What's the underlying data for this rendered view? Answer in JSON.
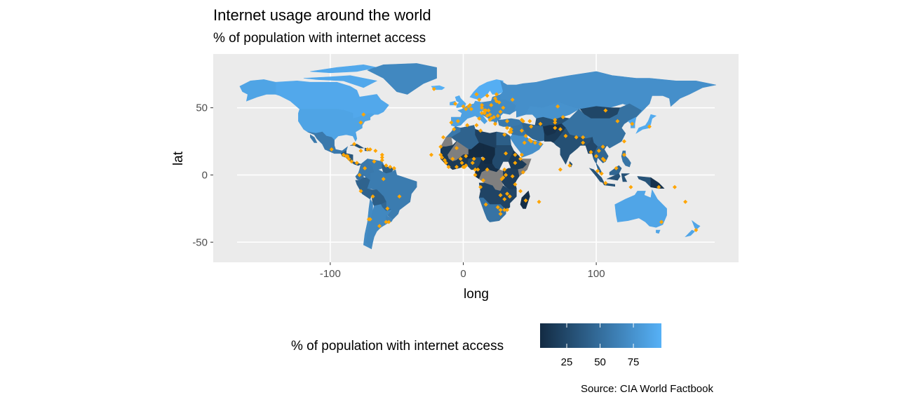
{
  "title": "Internet usage around the world",
  "subtitle": "% of population with internet access",
  "caption": "Source: CIA World Factbook",
  "colors": {
    "panel_bg": "#EBEBEB",
    "grid": "#FFFFFF",
    "low": "#132B43",
    "high": "#56B1F7",
    "missing": "#7F7F7F",
    "capital_point": "#FFA500"
  },
  "chart_data": {
    "type": "choropleth",
    "xlabel": "long",
    "ylabel": "lat",
    "xlim": [
      -188,
      207
    ],
    "ylim": [
      -65,
      90
    ],
    "x_ticks": [
      -100,
      0,
      100
    ],
    "y_ticks": [
      -50,
      0,
      50
    ],
    "grid": true,
    "legend": {
      "title": "% of population with internet access",
      "position": "bottom",
      "range": [
        5,
        96
      ],
      "breaks": [
        25,
        50,
        75
      ]
    },
    "regions": [
      {
        "name": "Canada",
        "value": 90
      },
      {
        "name": "Greenland",
        "value": 68
      },
      {
        "name": "United States",
        "value": 87
      },
      {
        "name": "Mexico",
        "value": 58
      },
      {
        "name": "Central America",
        "value": 35
      },
      {
        "name": "Cuba",
        "value": 30
      },
      {
        "name": "Colombia",
        "value": 58
      },
      {
        "name": "Venezuela",
        "value": 60
      },
      {
        "name": "Guianas",
        "value": 40
      },
      {
        "name": "Ecuador",
        "value": 52
      },
      {
        "name": "Peru",
        "value": 43
      },
      {
        "name": "Brazil",
        "value": 60
      },
      {
        "name": "Bolivia",
        "value": 40
      },
      {
        "name": "Paraguay",
        "value": 46
      },
      {
        "name": "Chile",
        "value": 70
      },
      {
        "name": "Argentina",
        "value": 68
      },
      {
        "name": "Uruguay",
        "value": 65
      },
      {
        "name": "Iceland",
        "value": 95
      },
      {
        "name": "Scandinavia",
        "value": 94
      },
      {
        "name": "United Kingdom",
        "value": 92
      },
      {
        "name": "Western Europe",
        "value": 85
      },
      {
        "name": "Eastern Europe",
        "value": 70
      },
      {
        "name": "Russia",
        "value": 73
      },
      {
        "name": "Kazakhstan",
        "value": 75
      },
      {
        "name": "Central Asia",
        "value": 30
      },
      {
        "name": "Mongolia",
        "value": 23
      },
      {
        "name": "China",
        "value": 53
      },
      {
        "name": "Japan",
        "value": 92
      },
      {
        "name": "Korea",
        "value": 90
      },
      {
        "name": "Turkey",
        "value": 58
      },
      {
        "name": "Middle East",
        "value": 55
      },
      {
        "name": "Saudi Arabia",
        "value": 73
      },
      {
        "name": "Iran",
        "value": 45
      },
      {
        "name": "Afghanistan",
        "value": 10
      },
      {
        "name": "Pakistan",
        "value": 15
      },
      {
        "name": "India",
        "value": 30
      },
      {
        "name": "Myanmar",
        "value": 25
      },
      {
        "name": "Southeast Asia",
        "value": 45
      },
      {
        "name": "Indonesia",
        "value": 32
      },
      {
        "name": "Papua New Guinea",
        "value": 10
      },
      {
        "name": "Philippines",
        "value": 55
      },
      {
        "name": "Australia",
        "value": 88
      },
      {
        "name": "New Zealand",
        "value": 88
      },
      {
        "name": "Morocco",
        "value": 58
      },
      {
        "name": "Algeria",
        "value": 43
      },
      {
        "name": "Libya",
        "value": 20
      },
      {
        "name": "Egypt",
        "value": 40
      },
      {
        "name": "Western Sahara",
        "value": null
      },
      {
        "name": "Mali",
        "value": null
      },
      {
        "name": "Niger",
        "value": 4
      },
      {
        "name": "Chad",
        "value": 5
      },
      {
        "name": "Sudan",
        "value": 26
      },
      {
        "name": "Ethiopia",
        "value": 15
      },
      {
        "name": "Somalia",
        "value": null
      },
      {
        "name": "West Africa",
        "value": 15
      },
      {
        "name": "Nigeria",
        "value": 25
      },
      {
        "name": "Central Africa",
        "value": 8
      },
      {
        "name": "DR Congo",
        "value": null
      },
      {
        "name": "East Africa",
        "value": 18
      },
      {
        "name": "Southern Africa",
        "value": 22
      },
      {
        "name": "South Africa",
        "value": 54
      },
      {
        "name": "Madagascar",
        "value": 7
      }
    ],
    "points": [
      [
        -77,
        39
      ],
      [
        -75,
        45
      ],
      [
        -99,
        19
      ],
      [
        -90,
        15
      ],
      [
        -88,
        14
      ],
      [
        -87,
        14
      ],
      [
        -86,
        12
      ],
      [
        -84,
        10
      ],
      [
        -80,
        9
      ],
      [
        -82,
        23
      ],
      [
        -77,
        18
      ],
      [
        -72,
        19
      ],
      [
        -70,
        19
      ],
      [
        -66,
        18
      ],
      [
        -61,
        15
      ],
      [
        -61,
        13
      ],
      [
        -61,
        11
      ],
      [
        -74,
        5
      ],
      [
        -67,
        10
      ],
      [
        -58,
        7
      ],
      [
        -55,
        6
      ],
      [
        -52,
        5
      ],
      [
        -78,
        0
      ],
      [
        -77,
        -12
      ],
      [
        -68,
        -16
      ],
      [
        -57,
        -25
      ],
      [
        -58,
        -35
      ],
      [
        -56,
        -35
      ],
      [
        -70,
        -33
      ],
      [
        -48,
        -16
      ],
      [
        -60,
        -3
      ],
      [
        -71,
        -33
      ],
      [
        -63,
        -38
      ],
      [
        -22,
        64
      ],
      [
        -6,
        53
      ],
      [
        0,
        51
      ],
      [
        2,
        49
      ],
      [
        4,
        51
      ],
      [
        6,
        49
      ],
      [
        5,
        52
      ],
      [
        12,
        56
      ],
      [
        10,
        60
      ],
      [
        18,
        59
      ],
      [
        25,
        60
      ],
      [
        24,
        57
      ],
      [
        25,
        55
      ],
      [
        21,
        52
      ],
      [
        14,
        52
      ],
      [
        14,
        50
      ],
      [
        16,
        48
      ],
      [
        19,
        48
      ],
      [
        17,
        48
      ],
      [
        14,
        46
      ],
      [
        16,
        46
      ],
      [
        18,
        44
      ],
      [
        20,
        45
      ],
      [
        21,
        42
      ],
      [
        20,
        41
      ],
      [
        23,
        43
      ],
      [
        26,
        44
      ],
      [
        28,
        47
      ],
      [
        30,
        50
      ],
      [
        27,
        54
      ],
      [
        37,
        56
      ],
      [
        12,
        42
      ],
      [
        -4,
        40
      ],
      [
        -9,
        39
      ],
      [
        24,
        38
      ],
      [
        33,
        35
      ],
      [
        33,
        40
      ],
      [
        36,
        34
      ],
      [
        35,
        32
      ],
      [
        36,
        32
      ],
      [
        44,
        41
      ],
      [
        45,
        40
      ],
      [
        50,
        40
      ],
      [
        44,
        33
      ],
      [
        47,
        29
      ],
      [
        50,
        26
      ],
      [
        51,
        25
      ],
      [
        54,
        24
      ],
      [
        58,
        23
      ],
      [
        44,
        15
      ],
      [
        46,
        24
      ],
      [
        51,
        36
      ],
      [
        69,
        41
      ],
      [
        69,
        39
      ],
      [
        58,
        38
      ],
      [
        71,
        51
      ],
      [
        75,
        43
      ],
      [
        69,
        35
      ],
      [
        73,
        34
      ],
      [
        77,
        29
      ],
      [
        85,
        28
      ],
      [
        90,
        28
      ],
      [
        90,
        24
      ],
      [
        96,
        17
      ],
      [
        100,
        14
      ],
      [
        102,
        18
      ],
      [
        105,
        21
      ],
      [
        105,
        12
      ],
      [
        106,
        11
      ],
      [
        101,
        3
      ],
      [
        104,
        1
      ],
      [
        115,
        5
      ],
      [
        107,
        -6
      ],
      [
        121,
        15
      ],
      [
        126,
        -9
      ],
      [
        116,
        40
      ],
      [
        107,
        48
      ],
      [
        127,
        38
      ],
      [
        140,
        36
      ],
      [
        121,
        25
      ],
      [
        147,
        -9
      ],
      [
        149,
        -35
      ],
      [
        175,
        -41
      ],
      [
        167,
        -20
      ],
      [
        159,
        -9
      ],
      [
        80,
        7
      ],
      [
        73,
        4
      ],
      [
        -7,
        34
      ],
      [
        3,
        37
      ],
      [
        10,
        37
      ],
      [
        13,
        33
      ],
      [
        31,
        30
      ],
      [
        32,
        16
      ],
      [
        -17,
        15
      ],
      [
        -16,
        13
      ],
      [
        -14,
        11
      ],
      [
        -13,
        9
      ],
      [
        -11,
        6
      ],
      [
        -5,
        6
      ],
      [
        -2,
        12
      ],
      [
        0,
        6
      ],
      [
        1,
        6
      ],
      [
        2,
        7
      ],
      [
        2,
        14
      ],
      [
        7,
        9
      ],
      [
        8,
        12
      ],
      [
        15,
        12
      ],
      [
        11,
        4
      ],
      [
        9,
        4
      ],
      [
        9,
        0
      ],
      [
        15,
        -4
      ],
      [
        15,
        -4
      ],
      [
        18,
        4
      ],
      [
        31,
        4
      ],
      [
        32,
        0
      ],
      [
        30,
        -2
      ],
      [
        29,
        -3
      ],
      [
        37,
        -1
      ],
      [
        39,
        -7
      ],
      [
        39,
        9
      ],
      [
        43,
        12
      ],
      [
        45,
        2
      ],
      [
        39,
        15
      ],
      [
        28,
        -15
      ],
      [
        31,
        -18
      ],
      [
        33,
        -14
      ],
      [
        33,
        -26
      ],
      [
        31,
        -26
      ],
      [
        26,
        -24
      ],
      [
        28,
        -26
      ],
      [
        28,
        -29
      ],
      [
        17,
        -22
      ],
      [
        13,
        -9
      ],
      [
        35,
        -16
      ],
      [
        47,
        -19
      ],
      [
        57,
        -20
      ],
      [
        43,
        -12
      ],
      [
        -24,
        15
      ],
      [
        -17,
        21
      ],
      [
        -15,
        28
      ],
      [
        -8,
        12
      ],
      [
        -1,
        9
      ],
      [
        -5,
        20
      ]
    ]
  }
}
